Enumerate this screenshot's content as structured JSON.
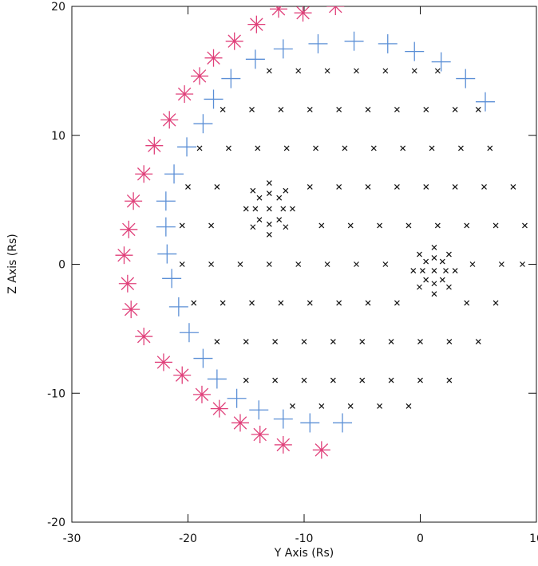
{
  "chart_data": {
    "type": "scatter",
    "xlabel": "Y Axis (Rs)",
    "ylabel": "Z Axis (Rs)",
    "xlim": [
      -30,
      10
    ],
    "ylim": [
      -20,
      20
    ],
    "xticks": [
      -30,
      -20,
      -10,
      0,
      10
    ],
    "yticks": [
      -20,
      -10,
      0,
      10,
      20
    ],
    "grid": false,
    "series": [
      {
        "marker": "asterisk",
        "color": "#e0407a",
        "x": [
          -12.2,
          -10.1,
          -7.3,
          -14.1,
          -16.0,
          -17.8,
          -19.0,
          -20.3,
          -21.6,
          -22.9,
          -23.8,
          -24.7,
          -25.1,
          -25.5,
          -25.2,
          -24.9,
          -23.8,
          -22.1,
          -20.5,
          -18.8,
          -17.3,
          -15.5,
          -13.8,
          -11.8,
          -8.5
        ],
        "values": [
          19.8,
          19.5,
          20.0,
          18.6,
          17.3,
          16.0,
          14.6,
          13.2,
          11.2,
          9.2,
          7.0,
          4.9,
          2.7,
          0.7,
          -1.5,
          -3.5,
          -5.6,
          -7.6,
          -8.6,
          -10.1,
          -11.2,
          -12.3,
          -13.2,
          -14.0,
          -14.4
        ]
      },
      {
        "marker": "plus",
        "color": "#5b8fd6",
        "x": [
          -18.7,
          -17.8,
          -16.3,
          -14.2,
          -11.8,
          -8.8,
          -5.7,
          -2.8,
          -0.5,
          1.8,
          3.9,
          5.6,
          -20.1,
          -21.2,
          -21.9,
          -21.9,
          -21.8,
          -21.4,
          -20.8,
          -19.9,
          -18.7,
          -17.5,
          -15.8,
          -13.9,
          -11.8,
          -9.5,
          -6.7
        ],
        "values": [
          10.9,
          12.8,
          14.4,
          15.9,
          16.7,
          17.1,
          17.3,
          17.1,
          16.5,
          15.7,
          14.4,
          12.6,
          9.1,
          7.0,
          4.9,
          2.9,
          0.8,
          -1.1,
          -3.3,
          -5.3,
          -7.3,
          -8.9,
          -10.4,
          -11.3,
          -12.0,
          -12.3,
          -12.3
        ]
      },
      {
        "marker": "x",
        "color": "#111111",
        "x": [
          -13,
          -10.5,
          -8,
          -5.5,
          -3,
          -0.5,
          1.5,
          -17,
          -14.5,
          -12,
          -9.5,
          -7,
          -4.5,
          -2,
          0.5,
          3,
          5,
          -19,
          -16.5,
          -14,
          -11.5,
          -9,
          -6.5,
          -4,
          -1.5,
          1,
          3.5,
          6,
          -20,
          -17.5,
          -9.5,
          -7,
          -4.5,
          -2,
          0.5,
          3,
          5.5,
          8,
          -20.5,
          -18,
          -8.5,
          -6,
          -3.5,
          -1,
          1.5,
          4,
          6.5,
          9,
          -20.5,
          -18,
          -15.5,
          -13,
          -10.5,
          -8,
          -5.5,
          -3,
          4.5,
          7,
          8.8,
          -19.5,
          -17,
          -14.5,
          -12,
          -9.5,
          -7,
          -4.5,
          -2,
          4,
          6.5,
          -17.5,
          -15,
          -12.5,
          -10,
          -7.5,
          -5,
          -2.5,
          0,
          2.5,
          5,
          -15,
          -12.5,
          -10,
          -7.5,
          -5,
          -2.5,
          0,
          2.5,
          -11,
          -8.5,
          -6,
          -3.5,
          -1
        ],
        "values": [
          15,
          15,
          15,
          15,
          15,
          15,
          15,
          12,
          12,
          12,
          12,
          12,
          12,
          12,
          12,
          12,
          12,
          9,
          9,
          9,
          9,
          9,
          9,
          9,
          9,
          9,
          9,
          9,
          6,
          6,
          6,
          6,
          6,
          6,
          6,
          6,
          6,
          6,
          3,
          3,
          3,
          3,
          3,
          3,
          3,
          3,
          3,
          3,
          0,
          0,
          0,
          0,
          0,
          0,
          0,
          0,
          0,
          0,
          0,
          -3,
          -3,
          -3,
          -3,
          -3,
          -3,
          -3,
          -3,
          -3,
          -3,
          -6,
          -6,
          -6,
          -6,
          -6,
          -6,
          -6,
          -6,
          -6,
          -6,
          -9,
          -9,
          -9,
          -9,
          -9,
          -9,
          -9,
          -9,
          -11,
          -11,
          -11,
          -11,
          -11
        ]
      },
      {
        "marker": "x",
        "color": "#111111",
        "x": [
          -13,
          -11.8,
          -12.15,
          -13,
          -13.85,
          -14.2,
          -13.85,
          -13,
          -12.15,
          -11,
          -11.59,
          -13,
          -14.41,
          -15,
          -14.41,
          -13,
          -11.59,
          1.2,
          2.2,
          1.91,
          1.2,
          0.49,
          0.2,
          0.49,
          1.2,
          1.91,
          3,
          2.47,
          1.2,
          -0.07,
          -0.6,
          -0.07,
          1.2,
          2.47
        ],
        "values": [
          4.3,
          4.3,
          5.15,
          5.5,
          5.15,
          4.3,
          3.45,
          3.1,
          3.45,
          4.3,
          5.71,
          6.3,
          5.71,
          4.3,
          2.89,
          2.3,
          2.89,
          -0.5,
          -0.5,
          0.21,
          0.5,
          0.21,
          -0.5,
          -1.21,
          -1.5,
          -1.21,
          -0.5,
          0.77,
          1.3,
          0.77,
          -0.5,
          -1.77,
          -2.3,
          -1.77
        ]
      }
    ]
  }
}
